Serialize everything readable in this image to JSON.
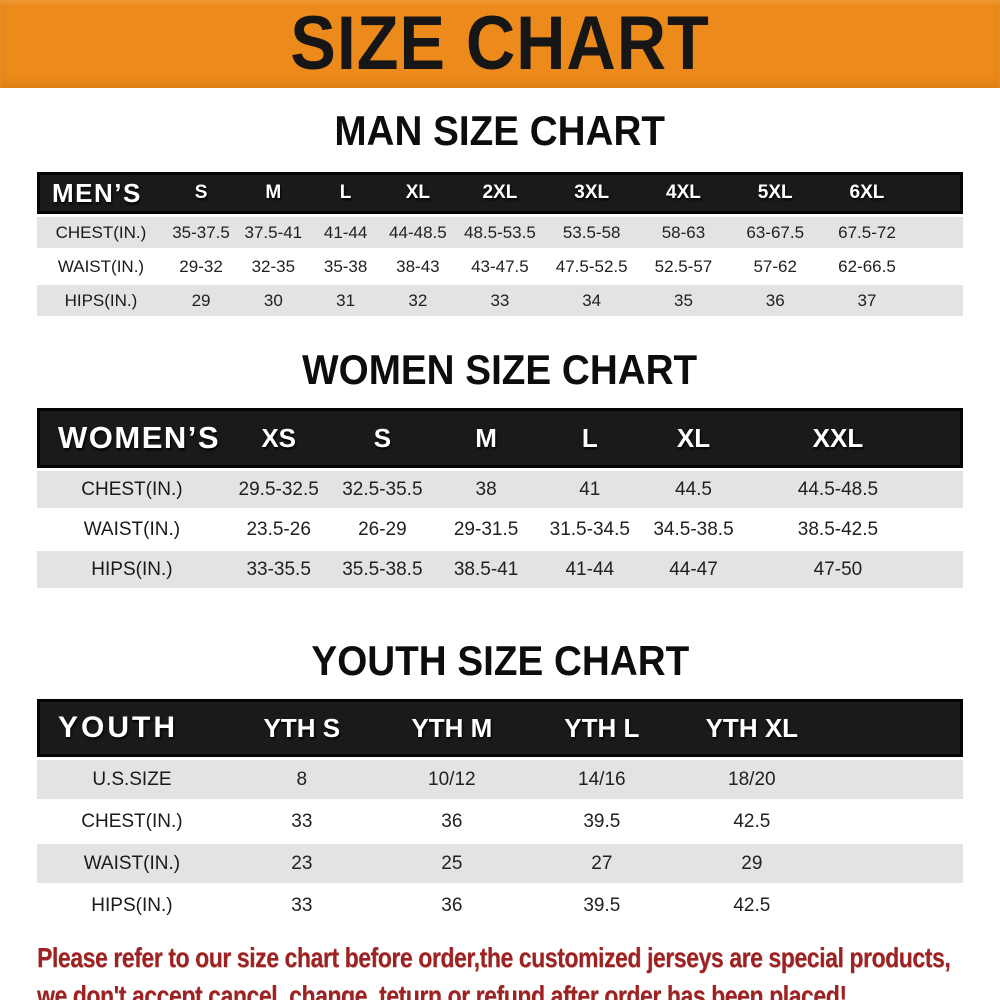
{
  "banner": {
    "title": "SIZE CHART",
    "bg_color": "#ec8a1b",
    "text_color": "#161616"
  },
  "sections": [
    {
      "title": "MAN SIZE CHART",
      "header_label": "MEN’S",
      "columns": [
        "S",
        "M",
        "L",
        "XL",
        "2XL",
        "3XL",
        "4XL",
        "5XL",
        "6XL"
      ],
      "rows": [
        {
          "label": "CHEST(IN.)",
          "values": [
            "35-37.5",
            "37.5-41",
            "41-44",
            "44-48.5",
            "48.5-53.5",
            "53.5-58",
            "58-63",
            "63-67.5",
            "67.5-72"
          ]
        },
        {
          "label": "WAIST(IN.)",
          "values": [
            "29-32",
            "32-35",
            "35-38",
            "38-43",
            "43-47.5",
            "47.5-52.5",
            "52.5-57",
            "57-62",
            "62-66.5"
          ]
        },
        {
          "label": "HIPS(IN.)",
          "values": [
            "29",
            "30",
            "31",
            "32",
            "33",
            "34",
            "35",
            "36",
            "37"
          ]
        }
      ]
    },
    {
      "title": "WOMEN SIZE CHART",
      "header_label": "WOMEN’S",
      "columns": [
        "XS",
        "S",
        "M",
        "L",
        "XL",
        "XXL"
      ],
      "rows": [
        {
          "label": "CHEST(IN.)",
          "values": [
            "29.5-32.5",
            "32.5-35.5",
            "38",
            "41",
            "44.5",
            "44.5-48.5"
          ]
        },
        {
          "label": "WAIST(IN.)",
          "values": [
            "23.5-26",
            "26-29",
            "29-31.5",
            "31.5-34.5",
            "34.5-38.5",
            "38.5-42.5"
          ]
        },
        {
          "label": "HIPS(IN.)",
          "values": [
            "33-35.5",
            "35.5-38.5",
            "38.5-41",
            "41-44",
            "44-47",
            "47-50"
          ]
        }
      ]
    },
    {
      "title": "YOUTH SIZE CHART",
      "header_label": "YOUTH",
      "columns": [
        "YTH S",
        "YTH M",
        "YTH L",
        "YTH XL"
      ],
      "rows": [
        {
          "label": "U.S.SIZE",
          "values": [
            "8",
            "10/12",
            "14/16",
            "18/20"
          ]
        },
        {
          "label": "CHEST(IN.)",
          "values": [
            "33",
            "36",
            "39.5",
            "42.5"
          ]
        },
        {
          "label": "WAIST(IN.)",
          "values": [
            "23",
            "25",
            "27",
            "29"
          ]
        },
        {
          "label": "HIPS(IN.)",
          "values": [
            "33",
            "36",
            "39.5",
            "42.5"
          ]
        }
      ]
    }
  ],
  "footer": {
    "line1": "Please refer to our size chart before order,the customized jerseys are special products,",
    "line2": "we don't accept cancel, change, teturn or refund after order has been placed!",
    "text_color": "#9e2222"
  }
}
